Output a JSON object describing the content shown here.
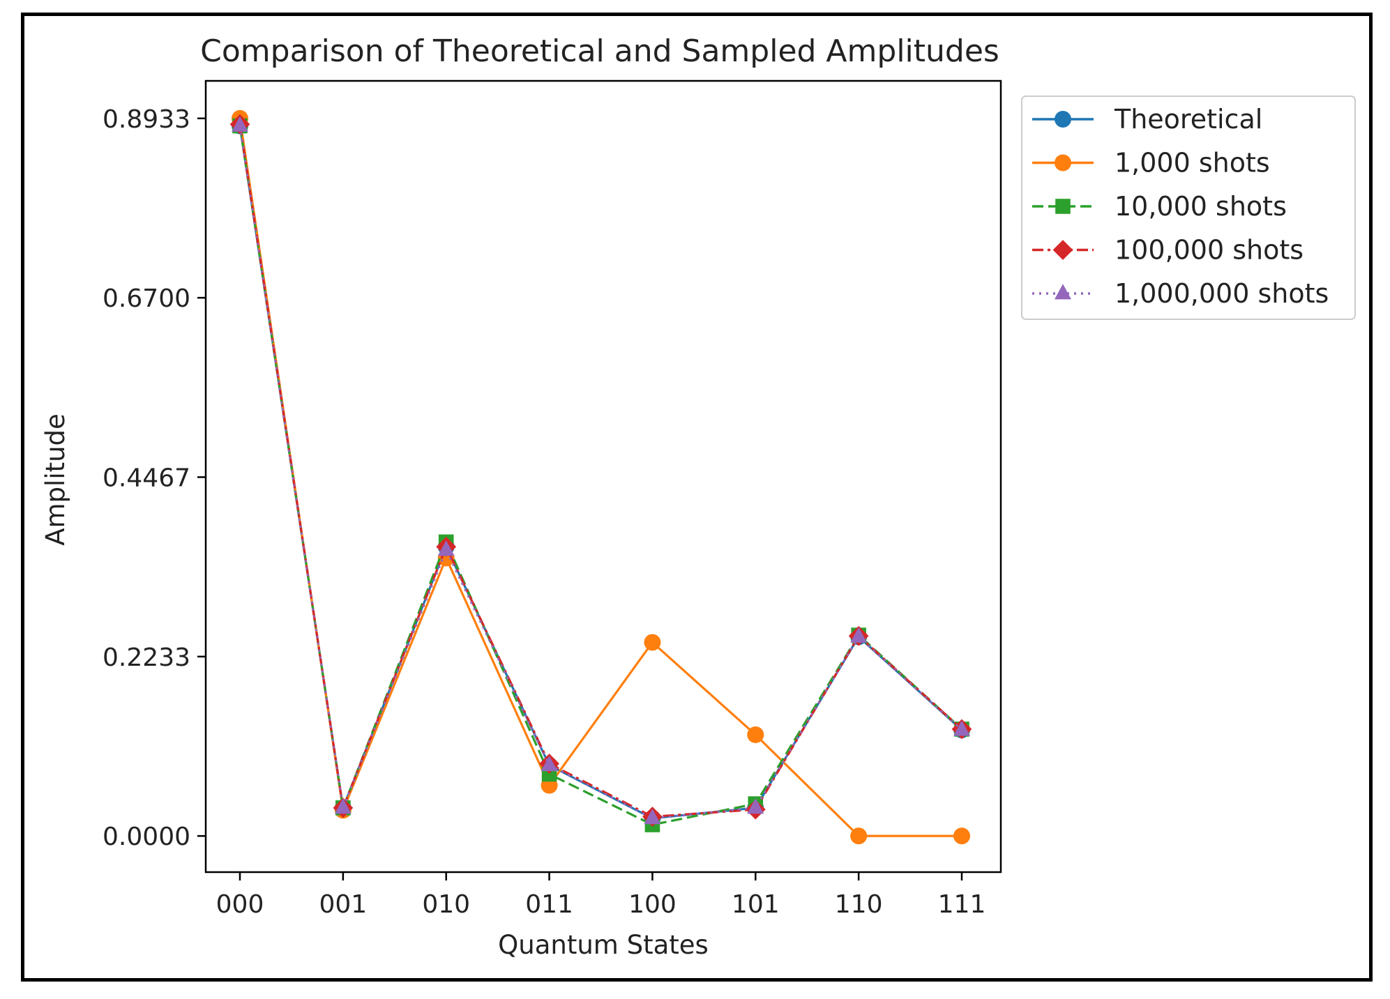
{
  "chart_data": {
    "type": "line",
    "title": "Comparison of Theoretical and Sampled Amplitudes",
    "xlabel": "Quantum States",
    "ylabel": "Amplitude",
    "categories": [
      "000",
      "001",
      "010",
      "011",
      "100",
      "101",
      "110",
      "111"
    ],
    "ylim": [
      -0.045,
      0.94
    ],
    "yticks": [
      0.0,
      0.2233,
      0.4467,
      0.67,
      0.8933
    ],
    "ytick_labels": [
      "0.0000",
      "0.2233",
      "0.4467",
      "0.6700",
      "0.8933"
    ],
    "legend_position": "outside-right-top",
    "grid": false,
    "series": [
      {
        "name": "Theoretical",
        "color": "#1f77b4",
        "marker": "circle",
        "linestyle": "solid",
        "values": [
          0.884,
          0.035,
          0.36,
          0.088,
          0.022,
          0.035,
          0.248,
          0.132
        ]
      },
      {
        "name": "1,000 shots",
        "color": "#ff7f0e",
        "marker": "circle",
        "linestyle": "solid",
        "values": [
          0.8933,
          0.032,
          0.346,
          0.063,
          0.241,
          0.126,
          0.0,
          0.0
        ]
      },
      {
        "name": "10,000 shots",
        "color": "#2ca02c",
        "marker": "square",
        "linestyle": "dashed",
        "values": [
          0.884,
          0.035,
          0.366,
          0.077,
          0.014,
          0.04,
          0.25,
          0.133
        ]
      },
      {
        "name": "100,000 shots",
        "color": "#d62728",
        "marker": "diamond",
        "linestyle": "dashdot",
        "values": [
          0.886,
          0.035,
          0.36,
          0.09,
          0.024,
          0.033,
          0.249,
          0.133
        ]
      },
      {
        "name": "1,000,000 shots",
        "color": "#9467bd",
        "marker": "triangle",
        "linestyle": "dotted",
        "values": [
          0.884,
          0.035,
          0.356,
          0.088,
          0.022,
          0.035,
          0.248,
          0.132
        ]
      }
    ]
  }
}
